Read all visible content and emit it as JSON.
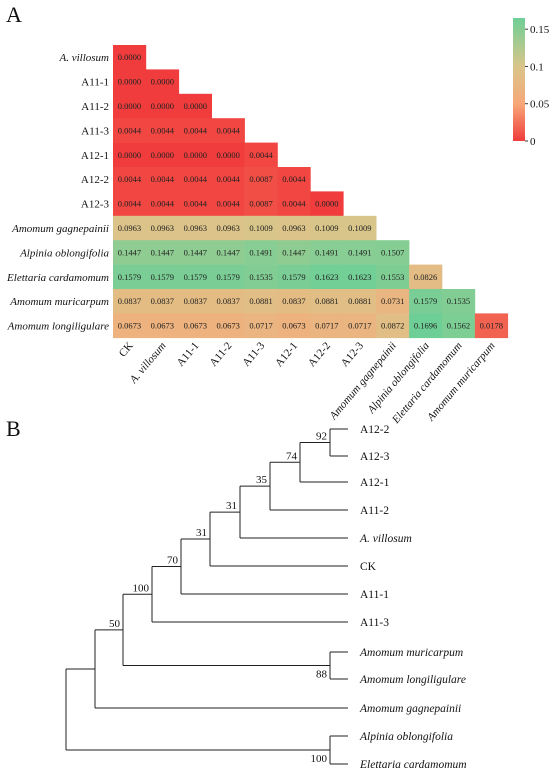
{
  "panels": {
    "a_label": "A",
    "b_label": "B"
  },
  "chart_data": [
    {
      "type": "heatmap",
      "title": "",
      "labels": [
        "CK",
        "A. villosum",
        "A11-1",
        "A11-2",
        "A11-3",
        "A12-1",
        "A12-2",
        "A12-3",
        "Amomum gagnepainii",
        "Alpinia oblongifolia",
        "Elettaria cardamomum",
        "Amomum muricarpum",
        "Amomum longiligulare"
      ],
      "italic_labels": [
        "A. villosum",
        "Amomum gagnepainii",
        "Alpinia oblongifolia",
        "Elettaria cardamomum",
        "Amomum muricarpum",
        "Amomum longiligulare"
      ],
      "row_labels": [
        "A. villosum",
        "A11-1",
        "A11-2",
        "A11-3",
        "A12-1",
        "A12-2",
        "A12-3",
        "Amomum gagnepainii",
        "Alpinia oblongifolia",
        "Elettaria cardamomum",
        "Amomum muricarpum",
        "Amomum longiligulare"
      ],
      "col_labels": [
        "CK",
        "A. villosum",
        "A11-1",
        "A11-2",
        "A11-3",
        "A12-1",
        "A12-2",
        "A12-3",
        "Amomum gagnepainii",
        "Alpinia oblongifolia",
        "Elettaria cardamomum",
        "Amomum muricarpum"
      ],
      "values": [
        [
          "0.0000"
        ],
        [
          "0.0000",
          "0.0000"
        ],
        [
          "0.0000",
          "0.0000",
          "0.0000"
        ],
        [
          "0.0044",
          "0.0044",
          "0.0044",
          "0.0044"
        ],
        [
          "0.0000",
          "0.0000",
          "0.0000",
          "0.0000",
          "0.0044"
        ],
        [
          "0.0044",
          "0.0044",
          "0.0044",
          "0.0044",
          "0.0087",
          "0.0044"
        ],
        [
          "0.0044",
          "0.0044",
          "0.0044",
          "0.0044",
          "0.0087",
          "0.0044",
          "0.0000"
        ],
        [
          "0.0963",
          "0.0963",
          "0.0963",
          "0.0963",
          "0.1009",
          "0.0963",
          "0.1009",
          "0.1009"
        ],
        [
          "0.1447",
          "0.1447",
          "0.1447",
          "0.1447",
          "0.1491",
          "0.1447",
          "0.1491",
          "0.1491",
          "0.1507"
        ],
        [
          "0.1579",
          "0.1579",
          "0.1579",
          "0.1579",
          "0.1535",
          "0.1579",
          "0.1623",
          "0.1623",
          "0.1553",
          "0.0826"
        ],
        [
          "0.0837",
          "0.0837",
          "0.0837",
          "0.0837",
          "0.0881",
          "0.0837",
          "0.0881",
          "0.0881",
          "0.0731",
          "0.1579",
          "0.1535"
        ],
        [
          "0.0673",
          "0.0673",
          "0.0673",
          "0.0673",
          "0.0717",
          "0.0673",
          "0.0717",
          "0.0717",
          "0.0872",
          "0.1696",
          "0.1562",
          "0.0178"
        ]
      ],
      "colorbar": {
        "range": [
          0,
          0.165
        ],
        "ticks": [
          0,
          0.05,
          0.1,
          0.15
        ],
        "tick_labels": [
          "0",
          "0.05",
          "0.1",
          "0.15"
        ],
        "colors": {
          "low": "#f03c3c",
          "mid_low": "#f7a878",
          "mid": "#d9c58a",
          "high": "#6ecf96"
        }
      }
    },
    {
      "type": "tree",
      "title": "",
      "leaves": [
        "A12-2",
        "A12-3",
        "A12-1",
        "A11-2",
        "A. villosum",
        "CK",
        "A11-1",
        "A11-3",
        "Amomum muricarpum",
        "Amomum longiligulare",
        "Amomum gagnepainii",
        "Alpinia oblongifolia",
        "Elettaria cardamomum"
      ],
      "italic_leaves": [
        "A. villosum",
        "Amomum muricarpum",
        "Amomum longiligulare",
        "Amomum gagnepainii",
        "Alpinia oblongifolia",
        "Elettaria cardamomum"
      ],
      "bootstrap": [
        "92",
        "74",
        "35",
        "31",
        "31",
        "70",
        "100",
        "50",
        "88",
        "100"
      ],
      "newick": "((((((((((A12-2,A12-3)92,A12-1)74,A11-2)35,A. villosum)31,CK)31,A11-1)70,A11-3)100,(Amomum muricarpum,Amomum longiligulare)88)50,Amomum gagnepainii),(Alpinia oblongifolia,Elettaria cardamomum)100)"
    }
  ]
}
